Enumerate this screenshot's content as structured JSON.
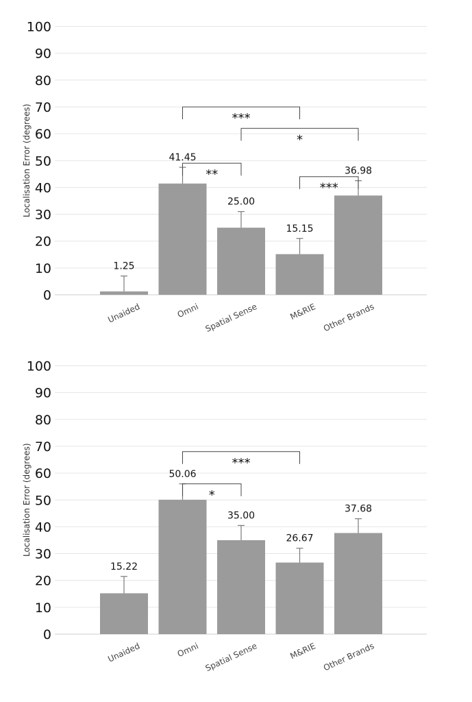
{
  "chart_data": [
    {
      "type": "bar",
      "ylabel": "Localisation Error (degrees)",
      "ylim": [
        0,
        100
      ],
      "yticks": [
        0,
        10,
        20,
        30,
        40,
        50,
        60,
        70,
        80,
        90,
        100
      ],
      "grid": true,
      "bar_color": "#9b9b9b",
      "categories": [
        "Unaided",
        "Omni",
        "Spatial Sense",
        "M&RIE",
        "Other Brands"
      ],
      "values": [
        1.25,
        41.45,
        25.0,
        15.15,
        36.98
      ],
      "data_labels": [
        "1.25",
        "41.45",
        "25.00",
        "15.15",
        "36.98"
      ],
      "error_upper": [
        7.0,
        47.5,
        31.0,
        21.0,
        42.5
      ],
      "significance": [
        {
          "from": "Omni",
          "to": "M&RIE",
          "label": "***",
          "y": 70
        },
        {
          "from": "Spatial Sense",
          "to": "Other Brands",
          "label": "*",
          "y": 62
        },
        {
          "from": "Omni",
          "to": "Spatial Sense",
          "label": "**",
          "y": 49
        },
        {
          "from": "M&RIE",
          "to": "Other Brands",
          "label": "***",
          "y": 44
        }
      ]
    },
    {
      "type": "bar",
      "ylabel": "Localisation Error (degrees)",
      "ylim": [
        0,
        100
      ],
      "yticks": [
        0,
        10,
        20,
        30,
        40,
        50,
        60,
        70,
        80,
        90,
        100
      ],
      "grid": true,
      "bar_color": "#9b9b9b",
      "categories": [
        "Unaided",
        "Omni",
        "Spatial Sense",
        "M&RIE",
        "Other Brands"
      ],
      "values": [
        15.22,
        50.06,
        35.0,
        26.67,
        37.68
      ],
      "data_labels": [
        "15.22",
        "50.06",
        "35.00",
        "26.67",
        "37.68"
      ],
      "error_upper": [
        21.5,
        56.0,
        40.5,
        32.0,
        43.0
      ],
      "significance": [
        {
          "from": "Omni",
          "to": "M&RIE",
          "label": "***",
          "y": 68
        },
        {
          "from": "Omni",
          "to": "Spatial Sense",
          "label": "*",
          "y": 56
        }
      ]
    }
  ]
}
